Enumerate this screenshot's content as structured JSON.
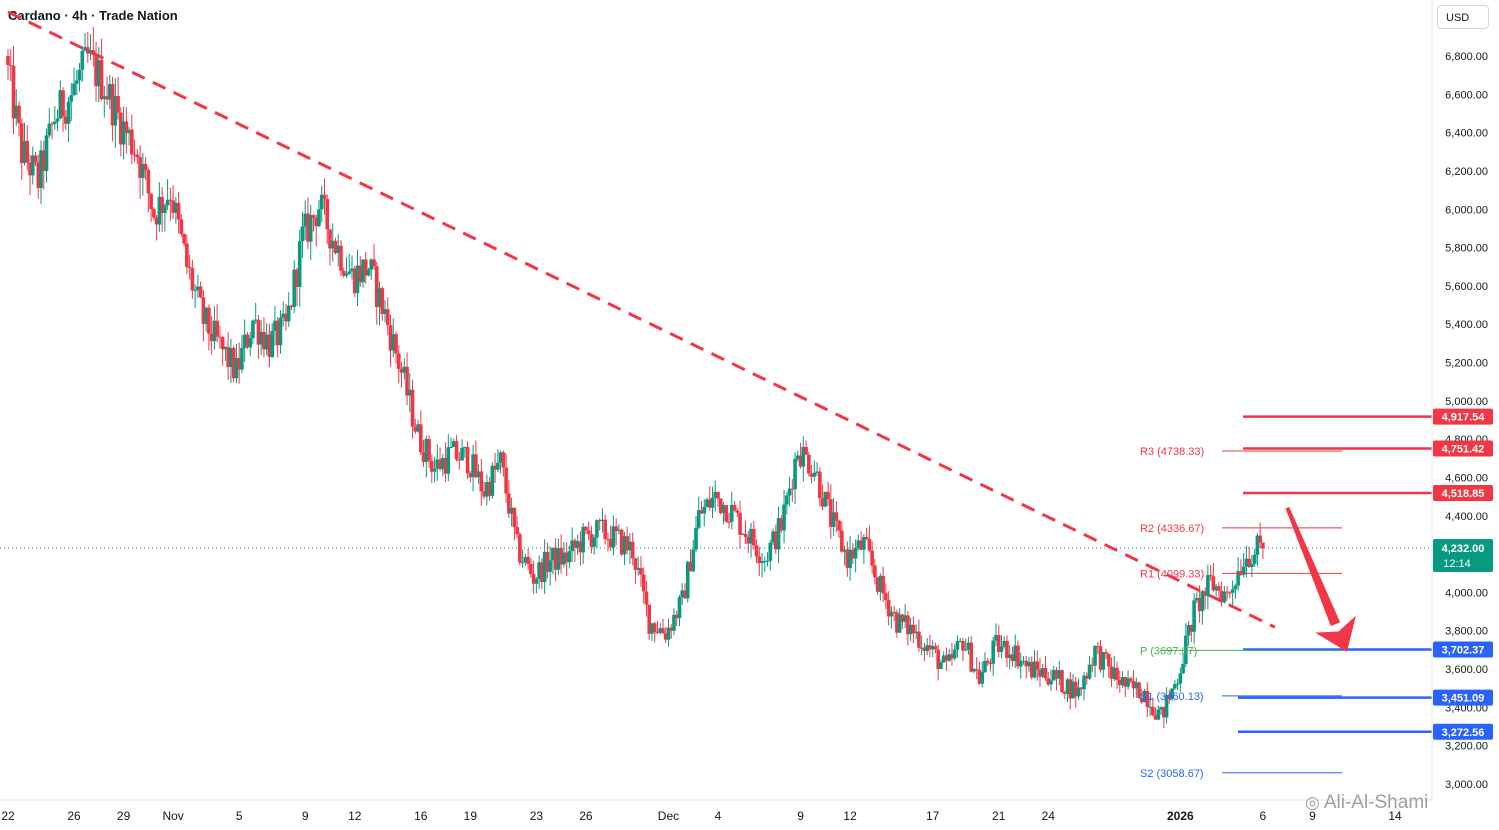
{
  "header": {
    "title": "Cardano · 4h · Trade Nation",
    "currency_button": "USD"
  },
  "watermark": "Ali-Al-Shami",
  "chart_data": {
    "type": "candlestick",
    "title": "Cardano · 4h · Trade Nation",
    "ylim": [
      2900,
      7000
    ],
    "y_ticks": [
      3000,
      3200,
      3400,
      3600,
      3800,
      4000,
      4200,
      4400,
      4600,
      4800,
      5000,
      5200,
      5400,
      5600,
      5800,
      6000,
      6200,
      6400,
      6600,
      6800
    ],
    "y_tick_labels": [
      "3,000.00",
      "3,200.00",
      "3,400.00",
      "3,600.00",
      "3,800.00",
      "4,000.00",
      "4,200.00",
      "4,400.00",
      "4,600.00",
      "4,800.00",
      "5,000.00",
      "5,200.00",
      "5,400.00",
      "5,600.00",
      "5,800.00",
      "6,000.00",
      "6,200.00",
      "6,400.00",
      "6,600.00",
      "6,800.00"
    ],
    "x_range": [
      "2025-10-22",
      "2026-01-14"
    ],
    "x_ticks": [
      {
        "date": "2025-10-22",
        "label": "22"
      },
      {
        "date": "2025-10-26",
        "label": "26"
      },
      {
        "date": "2025-10-29",
        "label": "29"
      },
      {
        "date": "2025-11-01",
        "label": "Nov"
      },
      {
        "date": "2025-11-05",
        "label": "5"
      },
      {
        "date": "2025-11-09",
        "label": "9"
      },
      {
        "date": "2025-11-12",
        "label": "12"
      },
      {
        "date": "2025-11-16",
        "label": "16"
      },
      {
        "date": "2025-11-19",
        "label": "19"
      },
      {
        "date": "2025-11-23",
        "label": "23"
      },
      {
        "date": "2025-11-26",
        "label": "26"
      },
      {
        "date": "2025-12-01",
        "label": "Dec"
      },
      {
        "date": "2025-12-04",
        "label": "4"
      },
      {
        "date": "2025-12-09",
        "label": "9"
      },
      {
        "date": "2025-12-12",
        "label": "12"
      },
      {
        "date": "2025-12-17",
        "label": "17"
      },
      {
        "date": "2025-12-21",
        "label": "21"
      },
      {
        "date": "2025-12-24",
        "label": "24"
      },
      {
        "date": "2026-01-01",
        "label": "2026"
      },
      {
        "date": "2026-01-06",
        "label": "6"
      },
      {
        "date": "2026-01-09",
        "label": "9"
      },
      {
        "date": "2026-01-14",
        "label": "14"
      }
    ],
    "path_points": [
      [
        "2025-10-22",
        6800
      ],
      [
        "2025-10-23",
        6300
      ],
      [
        "2025-10-24",
        6150
      ],
      [
        "2025-10-25",
        6480
      ],
      [
        "2025-10-26",
        6600
      ],
      [
        "2025-10-27",
        6780
      ],
      [
        "2025-10-28",
        6650
      ],
      [
        "2025-10-29",
        6450
      ],
      [
        "2025-10-30",
        6300
      ],
      [
        "2025-10-31",
        5980
      ],
      [
        "2025-11-01",
        6100
      ],
      [
        "2025-11-02",
        5700
      ],
      [
        "2025-11-03",
        5420
      ],
      [
        "2025-11-04",
        5280
      ],
      [
        "2025-11-05",
        5150
      ],
      [
        "2025-11-06",
        5420
      ],
      [
        "2025-11-07",
        5300
      ],
      [
        "2025-11-08",
        5380
      ],
      [
        "2025-11-09",
        5850
      ],
      [
        "2025-11-10",
        6020
      ],
      [
        "2025-11-11",
        5820
      ],
      [
        "2025-11-12",
        5650
      ],
      [
        "2025-11-13",
        5700
      ],
      [
        "2025-11-14",
        5450
      ],
      [
        "2025-11-15",
        5150
      ],
      [
        "2025-11-16",
        4820
      ],
      [
        "2025-11-17",
        4650
      ],
      [
        "2025-11-18",
        4720
      ],
      [
        "2025-11-19",
        4700
      ],
      [
        "2025-11-20",
        4530
      ],
      [
        "2025-11-21",
        4680
      ],
      [
        "2025-11-22",
        4230
      ],
      [
        "2025-11-23",
        4080
      ],
      [
        "2025-11-24",
        4170
      ],
      [
        "2025-11-25",
        4180
      ],
      [
        "2025-11-26",
        4280
      ],
      [
        "2025-11-27",
        4320
      ],
      [
        "2025-11-28",
        4280
      ],
      [
        "2025-11-29",
        4220
      ],
      [
        "2025-11-30",
        3850
      ],
      [
        "2025-12-01",
        3790
      ],
      [
        "2025-12-02",
        3950
      ],
      [
        "2025-12-03",
        4400
      ],
      [
        "2025-12-04",
        4500
      ],
      [
        "2025-12-05",
        4420
      ],
      [
        "2025-12-06",
        4300
      ],
      [
        "2025-12-07",
        4180
      ],
      [
        "2025-12-08",
        4350
      ],
      [
        "2025-12-09",
        4750
      ],
      [
        "2025-12-10",
        4650
      ],
      [
        "2025-12-11",
        4380
      ],
      [
        "2025-12-12",
        4180
      ],
      [
        "2025-12-13",
        4250
      ],
      [
        "2025-12-14",
        4020
      ],
      [
        "2025-12-15",
        3850
      ],
      [
        "2025-12-16",
        3800
      ],
      [
        "2025-12-17",
        3700
      ],
      [
        "2025-12-18",
        3600
      ],
      [
        "2025-12-19",
        3750
      ],
      [
        "2025-12-20",
        3550
      ],
      [
        "2025-12-21",
        3720
      ],
      [
        "2025-12-22",
        3700
      ],
      [
        "2025-12-23",
        3600
      ],
      [
        "2025-12-24",
        3580
      ],
      [
        "2025-12-25",
        3530
      ],
      [
        "2025-12-26",
        3480
      ],
      [
        "2025-12-27",
        3700
      ],
      [
        "2025-12-28",
        3580
      ],
      [
        "2025-12-29",
        3500
      ],
      [
        "2025-12-30",
        3480
      ],
      [
        "2025-12-31",
        3350
      ],
      [
        "2026-01-01",
        3560
      ],
      [
        "2026-01-02",
        3900
      ],
      [
        "2026-01-03",
        4050
      ],
      [
        "2026-01-04",
        3980
      ],
      [
        "2026-01-05",
        4180
      ],
      [
        "2026-01-06",
        4232
      ]
    ],
    "last_price": {
      "value": 4232,
      "label": "4,232.00",
      "countdown": "12:14",
      "color": "#089981"
    },
    "trendline": {
      "color": "#f23645",
      "style": "dashed",
      "points": [
        [
          "2025-10-22",
          7030
        ],
        [
          "2026-01-06",
          3850
        ]
      ]
    },
    "pivot_levels": [
      {
        "name": "R3",
        "label": "R3 (4738.33)",
        "value": 4738.33,
        "color": "#f23645"
      },
      {
        "name": "R2",
        "label": "R2 (4336.67)",
        "value": 4336.67,
        "color": "#f23645"
      },
      {
        "name": "R1",
        "label": "R1 (4099.33)",
        "value": 4099.33,
        "color": "#f23645"
      },
      {
        "name": "P",
        "label": "P (3697.67)",
        "value": 3697.67,
        "color": "#4caf50"
      },
      {
        "name": "S1",
        "label": "S1 (3460.13)",
        "value": 3460.13,
        "color": "#2962ff"
      },
      {
        "name": "S2",
        "label": "S2 (3058.67)",
        "value": 3058.67,
        "color": "#2962ff"
      }
    ],
    "horizontal_levels": [
      {
        "value": 4917.54,
        "label": "4,917.54",
        "color": "#f23645"
      },
      {
        "value": 4751.42,
        "label": "4,751.42",
        "color": "#f23645"
      },
      {
        "value": 4518.85,
        "label": "4,518.85",
        "color": "#f23645"
      },
      {
        "value": 3702.37,
        "label": "3,702.37",
        "color": "#2962ff"
      },
      {
        "value": 3451.09,
        "label": "3,451.09",
        "color": "#2962ff"
      },
      {
        "value": 3272.56,
        "label": "3,272.56",
        "color": "#2962ff"
      }
    ],
    "arrow": {
      "color": "#f23645",
      "direction": "down",
      "from": [
        "2026-01-07",
        4400
      ],
      "to": [
        "2026-01-10",
        3700
      ]
    },
    "up_color": "#089981",
    "down_color": "#f23645"
  }
}
